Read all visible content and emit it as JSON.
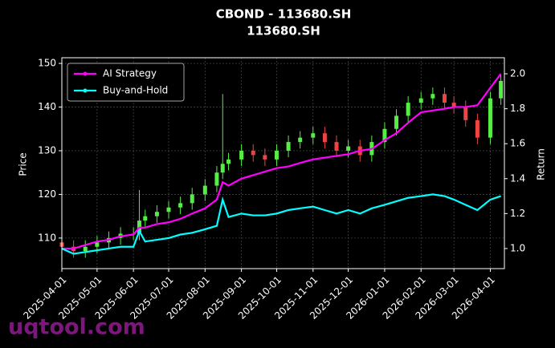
{
  "chart_data": {
    "type": "candlestick",
    "title": "CBOND - 113680.SH",
    "subtitle": "113680.SH",
    "ylabel": "Price",
    "y2label": "Return",
    "watermark": "uqtool.com",
    "x": [
      "2025-04-01",
      "2025-04-11",
      "2025-04-21",
      "2025-05-01",
      "2025-05-11",
      "2025-05-21",
      "2025-06-01",
      "2025-06-06",
      "2025-06-11",
      "2025-06-21",
      "2025-07-01",
      "2025-07-11",
      "2025-07-21",
      "2025-08-01",
      "2025-08-11",
      "2025-08-16",
      "2025-08-21",
      "2025-09-01",
      "2025-09-11",
      "2025-09-21",
      "2025-10-01",
      "2025-10-11",
      "2025-10-21",
      "2025-11-01",
      "2025-11-11",
      "2025-11-21",
      "2025-12-01",
      "2025-12-11",
      "2025-12-21",
      "2026-01-01",
      "2026-01-11",
      "2026-01-21",
      "2026-02-01",
      "2026-02-11",
      "2026-02-21",
      "2026-03-01",
      "2026-03-11",
      "2026-03-21",
      "2026-04-01",
      "2026-04-10"
    ],
    "open": [
      109,
      108,
      107,
      108,
      109,
      110,
      111,
      111,
      114,
      115,
      116,
      117,
      118,
      120,
      122,
      125,
      127,
      128,
      130,
      129,
      128,
      130,
      132,
      133,
      134,
      132,
      130,
      131,
      129,
      132,
      135,
      138,
      141,
      142,
      143,
      141,
      140,
      137,
      133,
      142
    ],
    "high": [
      110.5,
      109.5,
      109.5,
      110.5,
      111.5,
      112.5,
      112.5,
      121,
      116.5,
      117.5,
      118.5,
      119.5,
      121.5,
      123.5,
      126.5,
      143,
      129.5,
      131.5,
      131.5,
      130.5,
      131.5,
      133.5,
      134.5,
      135.5,
      135.5,
      133.5,
      132.5,
      132.5,
      133.5,
      136.5,
      139.5,
      142.5,
      143.5,
      144.5,
      144.5,
      142.5,
      141.5,
      138.5,
      143.5,
      147.5
    ],
    "low": [
      106.5,
      105.5,
      105.5,
      106.5,
      107.5,
      108.5,
      109.5,
      109.5,
      112.5,
      113.5,
      114.5,
      115.5,
      116.5,
      118.5,
      120.5,
      123.5,
      125.5,
      126.5,
      127.5,
      126.5,
      126.5,
      128.5,
      130.5,
      131.5,
      130.5,
      128.5,
      128.5,
      127.5,
      127.5,
      130.5,
      133.5,
      136.5,
      139.5,
      140.5,
      139.5,
      138.5,
      135.5,
      131.5,
      131.5,
      140.5
    ],
    "close": [
      108,
      107,
      108,
      109,
      110,
      111,
      111,
      114,
      115,
      116,
      117,
      118,
      120,
      122,
      125,
      127,
      128,
      130,
      129,
      128,
      130,
      132,
      133,
      134,
      132,
      130,
      131,
      129,
      132,
      135,
      138,
      141,
      142,
      143,
      141,
      140,
      137,
      133,
      142,
      146
    ],
    "up_color": "#55ee44",
    "down_color": "#ee4444",
    "series": [
      {
        "name": "AI Strategy",
        "color": "#ff00ff",
        "axis": "y2",
        "values": [
          1.0,
          1.0,
          1.02,
          1.04,
          1.05,
          1.07,
          1.08,
          1.12,
          1.12,
          1.14,
          1.15,
          1.17,
          1.2,
          1.23,
          1.28,
          1.38,
          1.36,
          1.4,
          1.42,
          1.44,
          1.46,
          1.47,
          1.49,
          1.51,
          1.52,
          1.53,
          1.54,
          1.56,
          1.57,
          1.62,
          1.66,
          1.72,
          1.78,
          1.79,
          1.8,
          1.81,
          1.81,
          1.82,
          1.92,
          2.0
        ]
      },
      {
        "name": "Buy-and-Hold",
        "color": "#00ffff",
        "axis": "y2",
        "values": [
          1.0,
          0.97,
          0.98,
          0.99,
          1.0,
          1.01,
          1.01,
          1.1,
          1.04,
          1.05,
          1.06,
          1.08,
          1.09,
          1.11,
          1.13,
          1.28,
          1.18,
          1.2,
          1.19,
          1.19,
          1.2,
          1.22,
          1.23,
          1.24,
          1.22,
          1.2,
          1.22,
          1.2,
          1.23,
          1.25,
          1.27,
          1.29,
          1.3,
          1.31,
          1.3,
          1.28,
          1.25,
          1.22,
          1.28,
          1.3
        ]
      }
    ],
    "xlim": [
      "2025-04-01",
      "2026-04-13"
    ],
    "xticks": [
      "2025-04-01",
      "2025-05-01",
      "2025-06-01",
      "2025-07-01",
      "2025-08-01",
      "2025-09-01",
      "2025-10-01",
      "2025-11-01",
      "2025-12-01",
      "2026-01-01",
      "2026-02-01",
      "2026-03-01",
      "2026-04-01"
    ],
    "ylim": [
      103,
      151.3
    ],
    "yticks": [
      110,
      120,
      130,
      140,
      150
    ],
    "y2lim": [
      0.885,
      2.092
    ],
    "y2ticks": [
      {
        "value": 1,
        "label": "1.0"
      },
      1.2,
      1.4,
      1.6,
      1.8,
      {
        "value": 2,
        "label": "2.0"
      }
    ],
    "grid": true,
    "legend": "upper left"
  }
}
